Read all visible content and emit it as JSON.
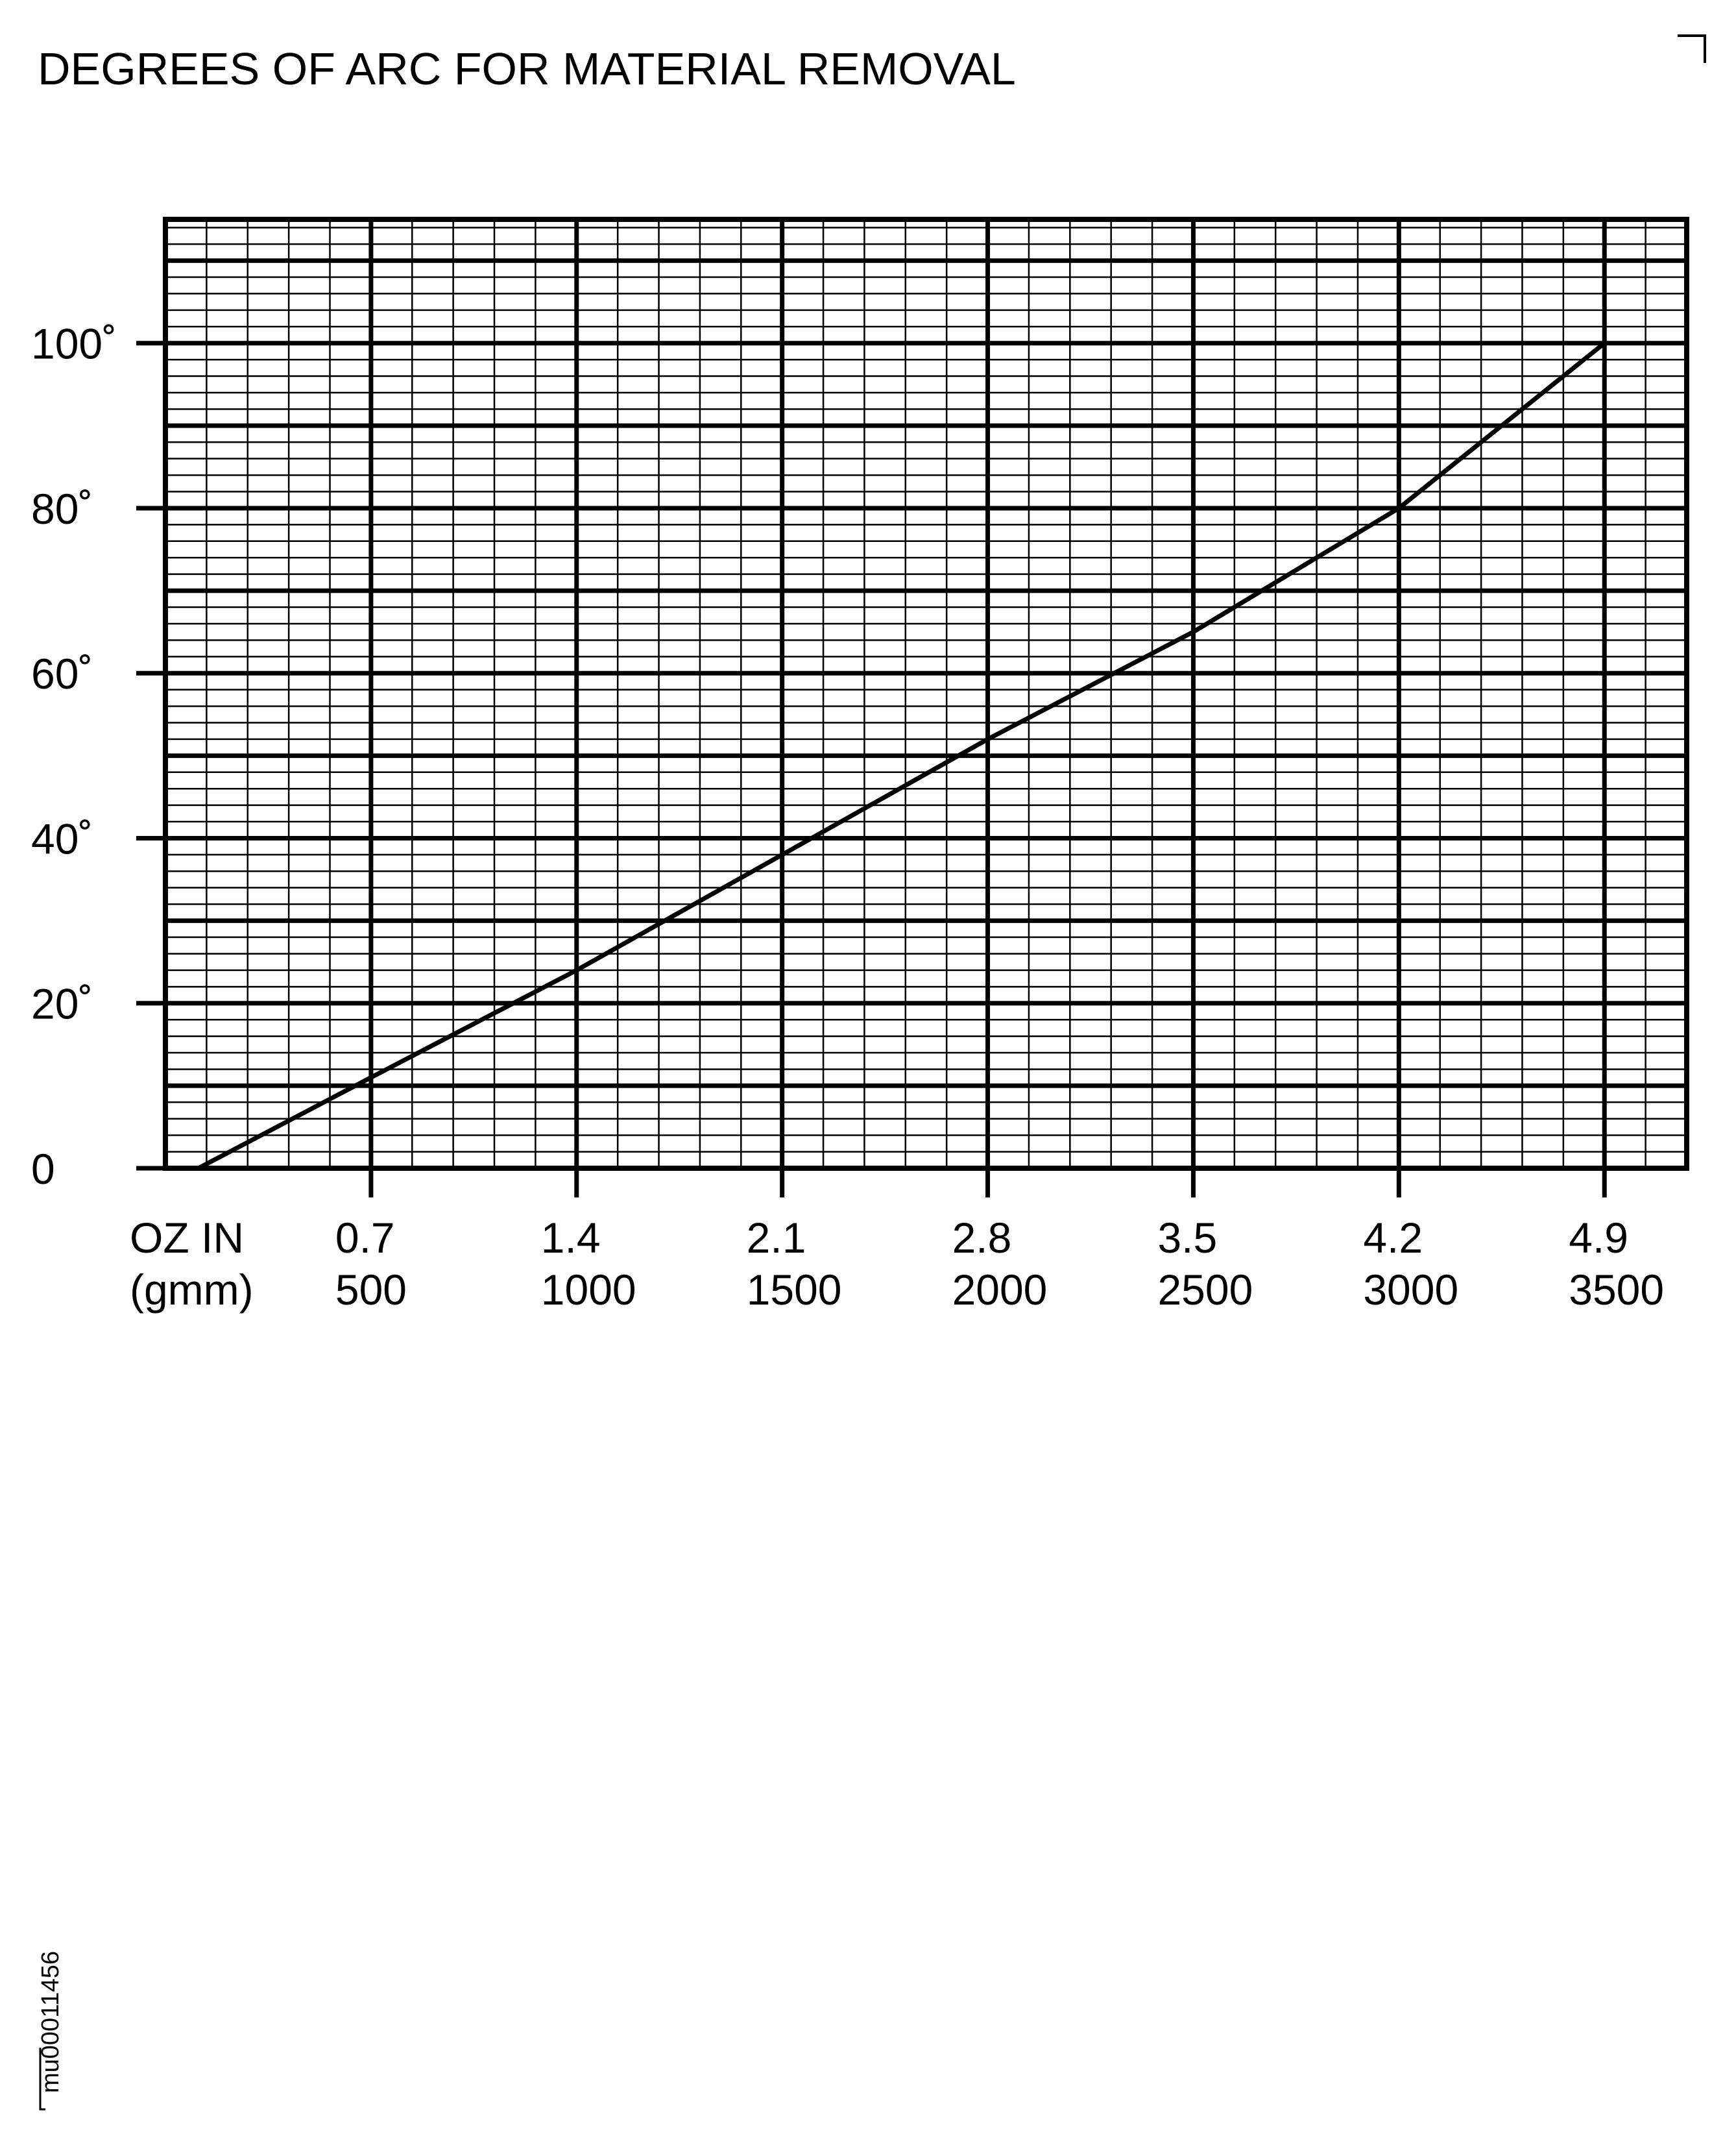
{
  "chart_data": {
    "type": "line",
    "title": "DEGREES OF ARC FOR MATERIAL REMOVAL",
    "xlabel_line1": "OZ IN",
    "xlabel_line2": "(gmm)",
    "ylabel": "",
    "xlim": [
      0,
      3700
    ],
    "ylim": [
      0,
      115
    ],
    "grid": true,
    "y_ticks": [
      {
        "value": 0,
        "label": "0"
      },
      {
        "value": 20,
        "label": "20˚"
      },
      {
        "value": 40,
        "label": "40˚"
      },
      {
        "value": 60,
        "label": "60˚"
      },
      {
        "value": 80,
        "label": "80˚"
      },
      {
        "value": 100,
        "label": "100˚"
      }
    ],
    "x_ticks": [
      {
        "value": 500,
        "label_oz": "0.7",
        "label_gmm": "500"
      },
      {
        "value": 1000,
        "label_oz": "1.4",
        "label_gmm": "1000"
      },
      {
        "value": 1500,
        "label_oz": "2.1",
        "label_gmm": "1500"
      },
      {
        "value": 2000,
        "label_oz": "2.8",
        "label_gmm": "2000"
      },
      {
        "value": 2500,
        "label_oz": "3.5",
        "label_gmm": "2500"
      },
      {
        "value": 3000,
        "label_oz": "4.2",
        "label_gmm": "3000"
      },
      {
        "value": 3500,
        "label_oz": "4.9",
        "label_gmm": "3500"
      }
    ],
    "series": [
      {
        "x": [
          80,
          500,
          1000,
          1500,
          2000,
          2500,
          3000,
          3500
        ],
        "y": [
          0,
          11,
          24,
          38,
          52,
          65,
          80,
          100
        ]
      }
    ]
  },
  "figure_id": "mu00011456",
  "colors": {
    "ink": "#000000",
    "background": "#ffffff"
  }
}
